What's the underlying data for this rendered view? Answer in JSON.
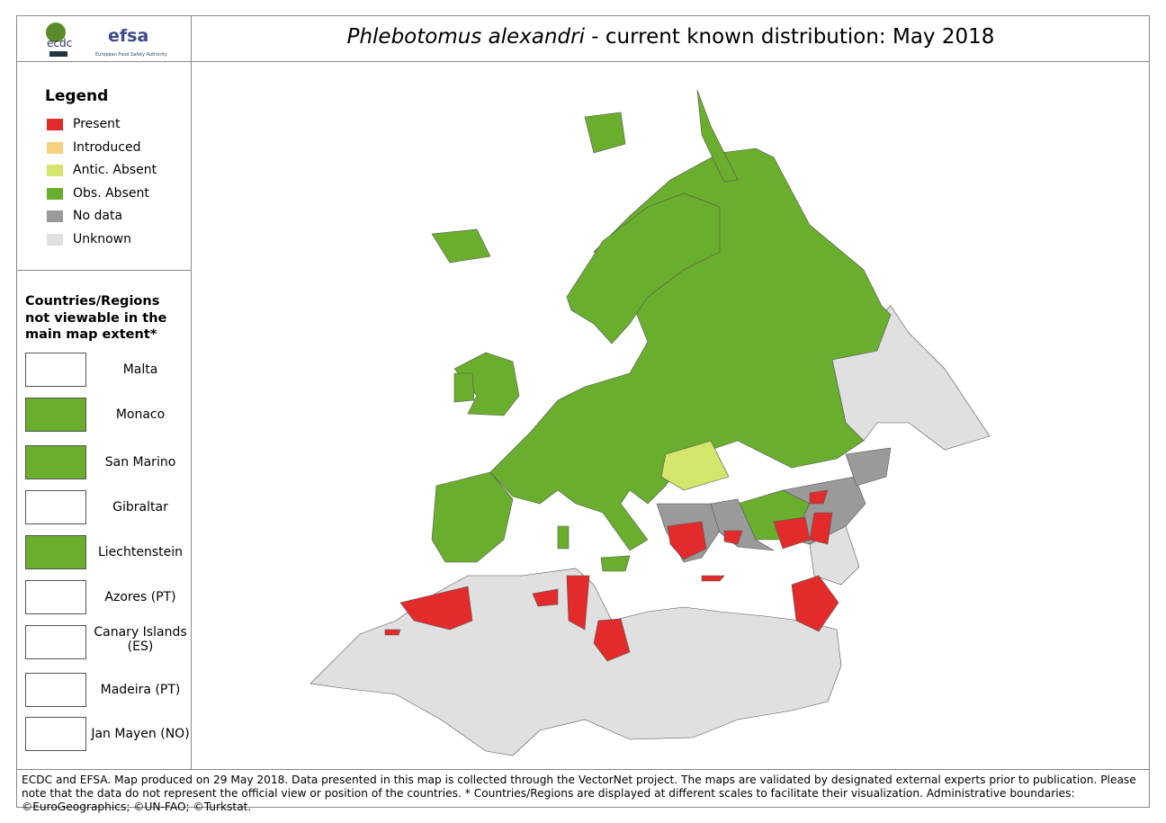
{
  "header": {
    "logos": {
      "ecdc": "ecdc",
      "efsa": "efsa",
      "efsa_sub": "European Food Safety Authority"
    },
    "title": {
      "species": "Phlebotomus alexandri",
      "rest": " - current known distribution: May 2018"
    }
  },
  "legend": {
    "title": "Legend",
    "items": [
      {
        "label": "Present",
        "color": "#e32b2b"
      },
      {
        "label": "Introduced",
        "color": "#f6d27c"
      },
      {
        "label": "Antic. Absent",
        "color": "#d5e46a"
      },
      {
        "label": "Obs. Absent",
        "color": "#6aae2d"
      },
      {
        "label": "No data",
        "color": "#9a9a9a"
      },
      {
        "label": "Unknown",
        "color": "#e0e0e0"
      }
    ]
  },
  "insets": {
    "title": "Countries/Regions not viewable in the main map extent*",
    "items": [
      "Malta",
      "Monaco",
      "San Marino",
      "Gibraltar",
      "Liechtenstein",
      "Azores (PT)",
      "Canary Islands (ES)",
      "Madeira (PT)",
      "Jan Mayen (NO)"
    ]
  },
  "footer": "ECDC and EFSA. Map produced on 29 May 2018. Data presented in this map is collected through the VectorNet project. The maps are validated by designated external experts prior to publication. Please note that the data do not represent the official view or position of the countries. * Countries/Regions are displayed at different scales to facilitate their visualization. Administrative boundaries: ©EuroGeographics; ©UN-FAO; ©Turkstat."
}
